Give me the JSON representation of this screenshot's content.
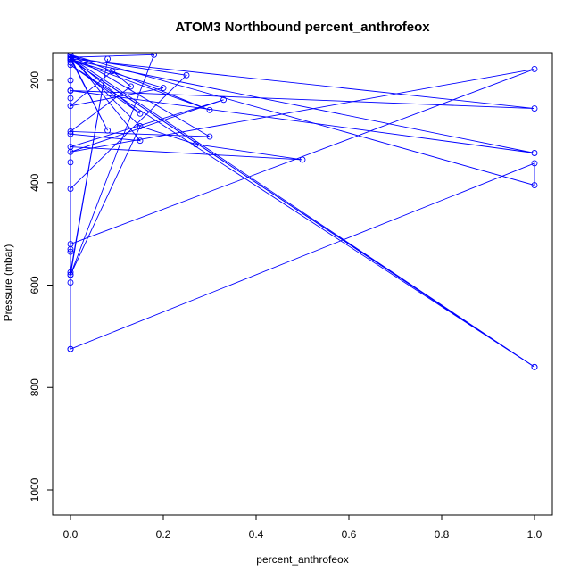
{
  "chart_data": {
    "type": "line",
    "title": "ATOM3 Northbound percent_anthrofeox",
    "xlabel": "percent_anthrofeox",
    "ylabel": "Pressure (mbar)",
    "xlim": [
      0,
      1
    ],
    "ylim": [
      1040,
      150
    ],
    "y_reversed": true,
    "x_ticks": [
      0.0,
      0.2,
      0.4,
      0.6,
      0.8,
      1.0
    ],
    "x_tick_labels": [
      "0.0",
      "0.2",
      "0.4",
      "0.6",
      "0.8",
      "1.0"
    ],
    "y_ticks": [
      200,
      400,
      600,
      800,
      1000
    ],
    "y_tick_labels": [
      "200",
      "400",
      "600",
      "800",
      "1000"
    ],
    "grid": false,
    "legend": "none",
    "color": "#0000ff",
    "series": [
      {
        "x": [
          0.0,
          0.0,
          0.0,
          0.08,
          0.0,
          0.15,
          0.27,
          0.5,
          0.0,
          0.33,
          0.0,
          1.0,
          0.0,
          0.0,
          0.0,
          0.0,
          0.0,
          0.0,
          0.0
        ],
        "y": [
          725,
          595,
          575,
          158,
          580,
          290,
          325,
          355,
          330,
          238,
          340,
          178,
          520,
          530,
          535,
          158,
          200,
          220,
          235
        ]
      },
      {
        "x": [
          0.0,
          1.0,
          1.0,
          0.0,
          0.0,
          0.2,
          0.0,
          0.09,
          0.13,
          0.0,
          0.3,
          0.0,
          0.0,
          0.15,
          0.0,
          0.0,
          0.0,
          0.25,
          0.0,
          0.15,
          0.0,
          1.0,
          0.0,
          0.3,
          0.0,
          0.0
        ],
        "y": [
          725,
          362,
          405,
          150,
          160,
          215,
          250,
          182,
          212,
          300,
          310,
          150,
          305,
          318,
          150,
          360,
          412,
          190,
          155,
          290,
          155,
          760,
          160,
          258,
          150,
          165
        ]
      },
      {
        "x": [
          0.0,
          0.08,
          0.0,
          1.0,
          0.0,
          1.0,
          0.0,
          1.0,
          0.0,
          0.15,
          0.0,
          0.18,
          0.0,
          0.0,
          0.0
        ],
        "y": [
          155,
          298,
          158,
          255,
          220,
          342,
          160,
          760,
          170,
          265,
          155,
          150,
          580,
          150,
          160
        ]
      }
    ]
  }
}
